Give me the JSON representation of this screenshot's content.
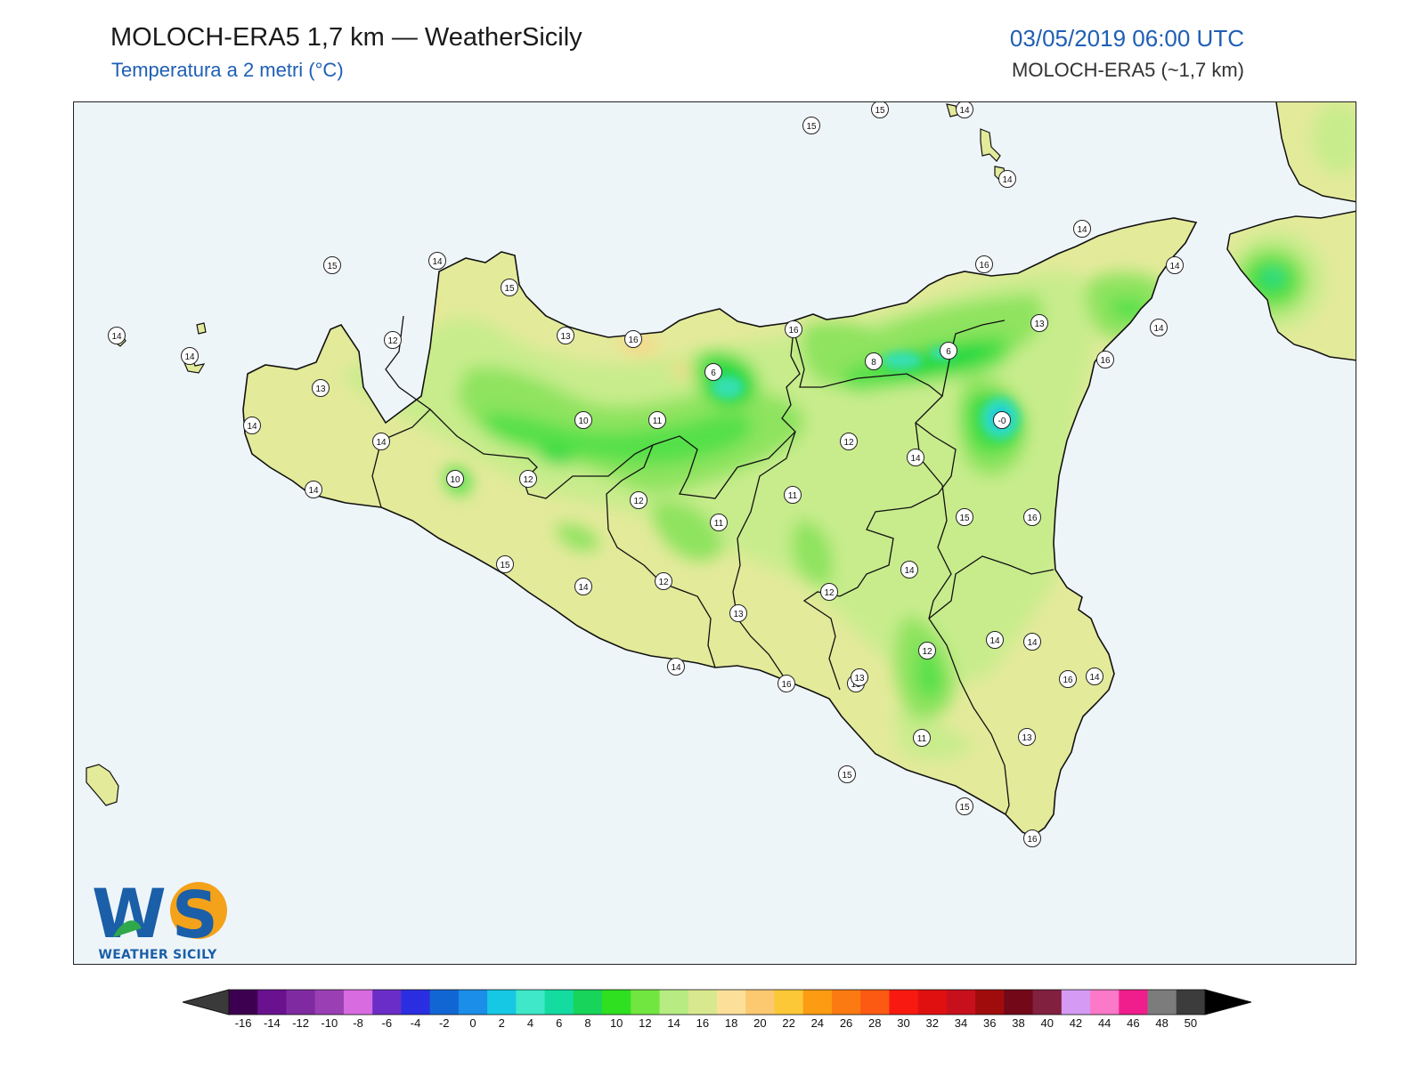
{
  "header": {
    "title": "MOLOCH-ERA5 1,7 km — WeatherSicily",
    "subtitle": "Temperatura a 2 metri (°C)",
    "datetime": "03/05/2019 06:00 UTC",
    "model": "MOLOCH-ERA5 (~1,7 km)"
  },
  "logo": {
    "mark": "WS",
    "name": "WEATHER SICILY"
  },
  "colors": {
    "sea": "#eef5f9",
    "land_base": "#e3ea9a",
    "temp_14": "#c8ec8c",
    "temp_12": "#8ee35e",
    "temp_10": "#55e04a",
    "temp_8": "#1ad83f",
    "temp_4": "#36e0b0",
    "temp_0": "#18c8e0",
    "warm_16": "#f6d88a",
    "outline": "#111111"
  },
  "map": {
    "station_values": [
      "15",
      "15",
      "14",
      "14",
      "14",
      "14",
      "16",
      "15",
      "14",
      "12",
      "13",
      "16",
      "16",
      "15",
      "13",
      "16",
      "14",
      "14",
      "13",
      "6",
      "8",
      "6",
      "14",
      "-0",
      "10",
      "11",
      "12",
      "14",
      "14",
      "14",
      "11",
      "10",
      "12",
      "12",
      "11",
      "14",
      "15",
      "16",
      "15",
      "14",
      "12",
      "13",
      "12",
      "14",
      "14",
      "16",
      "14",
      "13",
      "12",
      "13",
      "14",
      "15",
      "11",
      "15",
      "14",
      "16",
      "13",
      "16"
    ]
  },
  "colorbar": {
    "ticks": [
      "-16",
      "-14",
      "-12",
      "-10",
      "-8",
      "-6",
      "-4",
      "-2",
      "0",
      "2",
      "4",
      "6",
      "8",
      "10",
      "12",
      "14",
      "16",
      "18",
      "20",
      "22",
      "24",
      "26",
      "28",
      "30",
      "32",
      "34",
      "36",
      "38",
      "40",
      "42",
      "44",
      "46",
      "48",
      "50"
    ],
    "colors": [
      "#3d0050",
      "#6a1190",
      "#7f2aa0",
      "#9b3fb5",
      "#d86be0",
      "#6b2dc8",
      "#2a2ee0",
      "#1266d4",
      "#1a8ee8",
      "#16c8e4",
      "#3ee8c8",
      "#14dca0",
      "#18d45a",
      "#2ee020",
      "#72e640",
      "#b6ec82",
      "#d8e88e",
      "#fce09a",
      "#fcc870",
      "#fcc838",
      "#fc9c12",
      "#fc7a12",
      "#fc5a12",
      "#f81a10",
      "#e01010",
      "#c8101c",
      "#a00c0c",
      "#720818",
      "#822040",
      "#d49af4",
      "#fc78c8",
      "#f01e8c",
      "#7c7c7c",
      "#3c3c3c"
    ]
  }
}
